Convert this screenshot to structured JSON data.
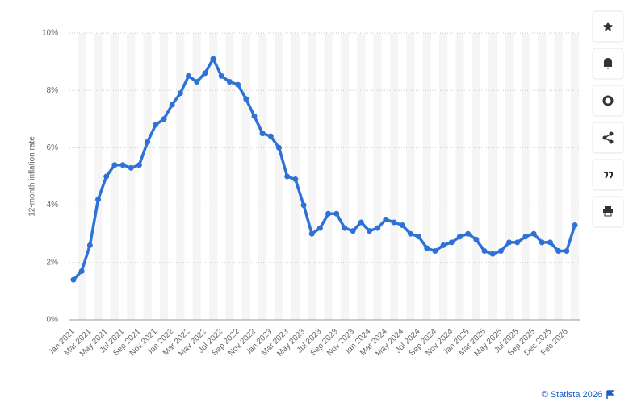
{
  "chart_data": {
    "type": "line",
    "y_label": "12-month inflation rate",
    "source": "© Statista 2026",
    "categories": [
      "Jan 2021",
      null,
      "Mar 2021",
      null,
      "May 2021",
      null,
      "Jul 2021",
      null,
      "Sep 2021",
      null,
      "Nov 2021",
      null,
      "Jan 2022",
      null,
      "Mar 2022",
      null,
      "May 2022",
      null,
      "Jul 2022",
      null,
      "Sep 2022",
      null,
      "Nov 2022",
      null,
      "Jan 2023",
      null,
      "Mar 2023",
      null,
      "May 2023",
      null,
      "Jul 2023",
      null,
      "Sep 2023",
      null,
      "Nov 2023",
      null,
      "Jan 2024",
      null,
      "Mar 2024",
      null,
      "May 2024",
      null,
      "Jul 2024",
      null,
      "Sep 2024",
      null,
      "Nov 2024",
      null,
      "Jan 2025",
      null,
      "Mar 2025",
      null,
      "May 2025",
      null,
      "Jul 2025",
      null,
      "Sep 2025",
      null,
      "Dec 2025",
      null,
      "Feb 2026",
      null
    ],
    "values": [
      1.4,
      1.7,
      2.6,
      4.2,
      5.0,
      5.4,
      5.4,
      5.3,
      5.4,
      6.2,
      6.8,
      7.0,
      7.5,
      7.9,
      8.5,
      8.3,
      8.6,
      9.1,
      8.5,
      8.3,
      8.2,
      7.7,
      7.1,
      6.5,
      6.4,
      6.0,
      5.0,
      4.9,
      4.0,
      3.0,
      3.2,
      3.7,
      3.7,
      3.2,
      3.1,
      3.4,
      3.1,
      3.2,
      3.5,
      3.4,
      3.3,
      3.0,
      2.9,
      2.5,
      2.4,
      2.6,
      2.7,
      2.9,
      3.0,
      2.8,
      2.4,
      2.3,
      2.4,
      2.7,
      2.7,
      2.9,
      3.0,
      2.7,
      2.7,
      2.4,
      2.4,
      3.3
    ],
    "color": "#2f72d6",
    "ylim": [
      0,
      10
    ],
    "yticks": [
      {
        "value": 0,
        "label": "0%"
      },
      {
        "value": 2,
        "label": "2%"
      },
      {
        "value": 4,
        "label": "4%"
      },
      {
        "value": 6,
        "label": "6%"
      },
      {
        "value": 8,
        "label": "8%"
      },
      {
        "value": 10,
        "label": "10%"
      }
    ],
    "grid": true
  }
}
